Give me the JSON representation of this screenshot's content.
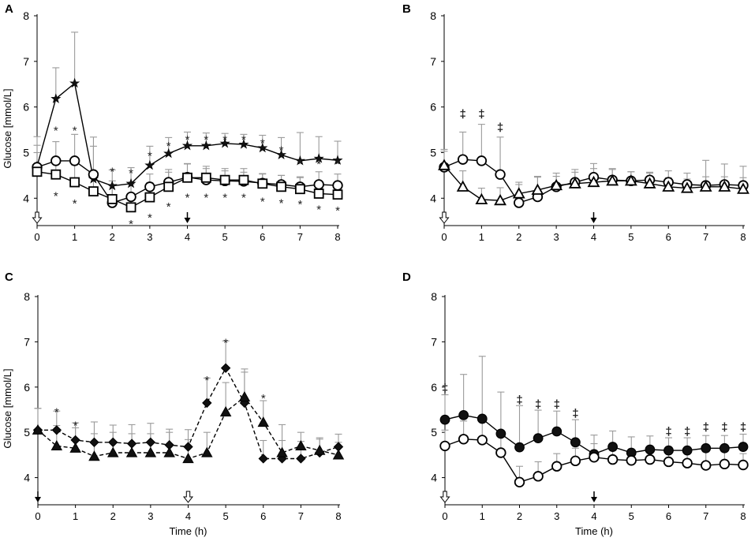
{
  "figure": {
    "x_label": "Time (h)",
    "y_label": "Glucose [mmol/L]"
  },
  "chart_data": [
    {
      "panel": "A",
      "type": "line",
      "title": "A",
      "ylabel": "Glucose [mmol/L]",
      "xlabel": "",
      "xlim": [
        0,
        8
      ],
      "ylim": [
        3.4,
        8
      ],
      "xticks": [
        0,
        1,
        2,
        3,
        4,
        5,
        6,
        7,
        8
      ],
      "yticks": [
        4,
        5,
        6,
        7,
        8
      ],
      "x": [
        0,
        0.5,
        1,
        1.5,
        2,
        2.5,
        3,
        3.5,
        4,
        4.5,
        5,
        5.5,
        6,
        6.5,
        7,
        7.5,
        8
      ],
      "series": [
        {
          "name": "star",
          "marker": "star",
          "dash": false,
          "values": [
            4.7,
            6.18,
            6.52,
            4.42,
            4.27,
            4.32,
            4.72,
            4.98,
            5.15,
            5.15,
            5.2,
            5.18,
            5.1,
            4.95,
            4.82,
            4.87,
            4.83
          ],
          "errors": [
            0.65,
            0.68,
            1.12,
            0.92,
            0.35,
            0.35,
            0.42,
            0.35,
            0.3,
            0.28,
            0.22,
            0.22,
            0.28,
            0.38,
            0.62,
            0.48,
            0.42
          ]
        },
        {
          "name": "circle",
          "marker": "circle",
          "dash": false,
          "values": [
            4.68,
            4.82,
            4.82,
            4.52,
            3.9,
            4.03,
            4.25,
            4.35,
            4.46,
            4.4,
            4.38,
            4.37,
            4.33,
            4.3,
            4.25,
            4.3,
            4.28
          ],
          "errors": [
            0.48,
            0.42,
            0.58,
            0.62,
            0.38,
            0.28,
            0.28,
            0.28,
            0.3,
            0.25,
            0.22,
            0.2,
            0.2,
            0.2,
            0.22,
            0.28,
            0.25
          ]
        },
        {
          "name": "square",
          "marker": "square",
          "dash": false,
          "values": [
            4.58,
            4.52,
            4.35,
            4.15,
            3.98,
            3.8,
            4.02,
            4.25,
            4.45,
            4.45,
            4.4,
            4.4,
            4.32,
            4.25,
            4.2,
            4.1,
            4.08
          ],
          "errors": [
            0.42,
            0.38,
            0.38,
            0.42,
            0.4,
            0.3,
            0.32,
            0.32,
            0.3,
            0.25,
            0.25,
            0.25,
            0.22,
            0.25,
            0.25,
            0.22,
            0.25
          ]
        }
      ],
      "annotations": [
        {
          "x": 0.5,
          "y": 5.55,
          "text": "*"
        },
        {
          "x": 1,
          "y": 5.55,
          "text": "*"
        },
        {
          "x": 2,
          "y": 4.65,
          "text": "*"
        },
        {
          "x": 2.5,
          "y": 4.62,
          "text": "*"
        },
        {
          "x": 3,
          "y": 5.0,
          "text": "*"
        },
        {
          "x": 3.5,
          "y": 5.22,
          "text": "*"
        },
        {
          "x": 4,
          "y": 5.35,
          "text": "*"
        },
        {
          "x": 4.5,
          "y": 5.35,
          "text": "*"
        },
        {
          "x": 5,
          "y": 5.35,
          "text": "*"
        },
        {
          "x": 5.5,
          "y": 5.35,
          "text": "*"
        },
        {
          "x": 6,
          "y": 5.28,
          "text": "*"
        },
        {
          "x": 6.5,
          "y": 5.12,
          "text": "*"
        },
        {
          "x": 7,
          "y": 4.82,
          "text": "*"
        },
        {
          "x": 7.5,
          "y": 4.82,
          "text": "*"
        },
        {
          "x": 8,
          "y": 4.82,
          "text": "*"
        },
        {
          "x": 0.5,
          "y": 4.12,
          "text": "*"
        },
        {
          "x": 1,
          "y": 3.95,
          "text": "*"
        },
        {
          "x": 2.5,
          "y": 3.5,
          "text": "*"
        },
        {
          "x": 3,
          "y": 3.64,
          "text": "*"
        },
        {
          "x": 3.5,
          "y": 3.88,
          "text": "*"
        },
        {
          "x": 4,
          "y": 4.08,
          "text": "*"
        },
        {
          "x": 4.5,
          "y": 4.08,
          "text": "*"
        },
        {
          "x": 5,
          "y": 4.08,
          "text": "*"
        },
        {
          "x": 5.5,
          "y": 4.08,
          "text": "*"
        },
        {
          "x": 6,
          "y": 4.0,
          "text": "*"
        },
        {
          "x": 6.5,
          "y": 3.96,
          "text": "*"
        },
        {
          "x": 7,
          "y": 3.94,
          "text": "*"
        },
        {
          "x": 7.5,
          "y": 3.82,
          "text": "*"
        },
        {
          "x": 8,
          "y": 3.8,
          "text": "*"
        }
      ],
      "arrows": [
        {
          "x": 0,
          "kind": "open"
        },
        {
          "x": 4,
          "kind": "filled"
        }
      ]
    },
    {
      "panel": "B",
      "type": "line",
      "title": "B",
      "ylabel": "",
      "xlabel": "",
      "xlim": [
        0,
        8
      ],
      "ylim": [
        3.4,
        8
      ],
      "xticks": [
        0,
        1,
        2,
        3,
        4,
        5,
        6,
        7,
        8
      ],
      "yticks": [
        4,
        5,
        6,
        7,
        8
      ],
      "x": [
        0,
        0.5,
        1,
        1.5,
        2,
        2.5,
        3,
        3.5,
        4,
        4.5,
        5,
        5.5,
        6,
        6.5,
        7,
        7.5,
        8
      ],
      "series": [
        {
          "name": "circle",
          "marker": "circle",
          "dash": false,
          "values": [
            4.68,
            4.85,
            4.82,
            4.52,
            3.9,
            4.03,
            4.25,
            4.35,
            4.46,
            4.4,
            4.38,
            4.4,
            4.35,
            4.3,
            4.28,
            4.3,
            4.28
          ],
          "errors": [
            0.35,
            0.6,
            0.8,
            0.82,
            0.4,
            0.45,
            0.3,
            0.28,
            0.3,
            0.25,
            0.2,
            0.15,
            0.25,
            0.25,
            0.55,
            0.45,
            0.42
          ]
        },
        {
          "name": "triangle",
          "marker": "triangle",
          "dash": false,
          "values": [
            4.72,
            4.25,
            3.97,
            3.95,
            4.1,
            4.18,
            4.28,
            4.32,
            4.35,
            4.38,
            4.38,
            4.32,
            4.25,
            4.22,
            4.25,
            4.25,
            4.2
          ],
          "errors": [
            0.35,
            0.35,
            0.25,
            0.28,
            0.25,
            0.28,
            0.2,
            0.25,
            0.3,
            0.25,
            0.2,
            0.25,
            0.2,
            0.2,
            0.22,
            0.22,
            0.25
          ]
        }
      ],
      "annotations": [
        {
          "x": 0.5,
          "y": 5.85,
          "text": "‡"
        },
        {
          "x": 1,
          "y": 5.85,
          "text": "‡"
        },
        {
          "x": 1.5,
          "y": 5.55,
          "text": "‡"
        }
      ],
      "arrows": [
        {
          "x": 0,
          "kind": "open"
        },
        {
          "x": 4,
          "kind": "filled"
        }
      ]
    },
    {
      "panel": "C",
      "type": "line",
      "title": "C",
      "ylabel": "Glucose [mmol/L]",
      "xlabel": "Time (h)",
      "xlim": [
        0,
        8
      ],
      "ylim": [
        3.4,
        8
      ],
      "xticks": [
        0,
        1,
        2,
        3,
        4,
        5,
        6,
        7,
        8
      ],
      "yticks": [
        4,
        5,
        6,
        7,
        8
      ],
      "x": [
        0,
        0.5,
        1,
        1.5,
        2,
        2.5,
        3,
        3.5,
        4,
        4.5,
        5,
        5.5,
        6,
        6.5,
        7,
        7.5,
        8
      ],
      "series": [
        {
          "name": "diamond",
          "marker": "diamond",
          "dash": true,
          "values": [
            5.05,
            5.05,
            4.83,
            4.78,
            4.78,
            4.75,
            4.78,
            4.72,
            4.68,
            5.65,
            6.42,
            5.65,
            4.42,
            4.42,
            4.42,
            4.55,
            4.68
          ],
          "errors": [
            0.48,
            0.42,
            0.38,
            0.45,
            0.38,
            0.42,
            0.42,
            0.35,
            0.38,
            0.55,
            0.6,
            0.75,
            0.4,
            0.4,
            0.38,
            0.3,
            0.28
          ]
        },
        {
          "name": "triangle",
          "marker": "triangle",
          "dash": true,
          "values": [
            5.05,
            4.7,
            4.65,
            4.47,
            4.55,
            4.55,
            4.55,
            4.55,
            4.42,
            4.55,
            5.45,
            5.78,
            5.22,
            4.55,
            4.7,
            4.6,
            4.5
          ],
          "errors": [
            0.48,
            0.45,
            0.45,
            0.5,
            0.45,
            0.42,
            0.42,
            0.45,
            0.42,
            0.45,
            0.65,
            0.55,
            0.48,
            0.62,
            0.3,
            0.28,
            0.28
          ]
        }
      ],
      "annotations": [
        {
          "x": 0.5,
          "y": 5.52,
          "text": "*"
        },
        {
          "x": 1,
          "y": 5.22,
          "text": "*"
        },
        {
          "x": 4.5,
          "y": 6.22,
          "text": "*"
        },
        {
          "x": 5,
          "y": 7.05,
          "text": "*"
        },
        {
          "x": 6,
          "y": 5.82,
          "text": "*"
        }
      ],
      "arrows": [
        {
          "x": 0,
          "kind": "filled"
        },
        {
          "x": 4,
          "kind": "open"
        }
      ]
    },
    {
      "panel": "D",
      "type": "line",
      "title": "D",
      "ylabel": "",
      "xlabel": "Time (h)",
      "xlim": [
        0,
        8
      ],
      "ylim": [
        3.4,
        8
      ],
      "xticks": [
        0,
        1,
        2,
        3,
        4,
        5,
        6,
        7,
        8
      ],
      "yticks": [
        4,
        5,
        6,
        7,
        8
      ],
      "x": [
        0,
        0.5,
        1,
        1.5,
        2,
        2.5,
        3,
        3.5,
        4,
        4.5,
        5,
        5.5,
        6,
        6.5,
        7,
        7.5,
        8
      ],
      "series": [
        {
          "name": "filled-circle",
          "marker": "filled-circle",
          "dash": false,
          "values": [
            5.28,
            5.38,
            5.3,
            4.97,
            4.67,
            4.87,
            5.02,
            4.78,
            4.52,
            4.68,
            4.55,
            4.62,
            4.6,
            4.6,
            4.65,
            4.65,
            4.68
          ],
          "errors": [
            0.55,
            0.9,
            1.38,
            0.92,
            0.92,
            0.62,
            0.45,
            0.5,
            0.42,
            0.35,
            0.35,
            0.3,
            0.28,
            0.28,
            0.28,
            0.28,
            0.28
          ]
        },
        {
          "name": "open-circle",
          "marker": "circle",
          "dash": false,
          "values": [
            4.7,
            4.85,
            4.83,
            4.55,
            3.9,
            4.03,
            4.25,
            4.37,
            4.45,
            4.4,
            4.38,
            4.4,
            4.35,
            4.32,
            4.27,
            4.3,
            4.28
          ],
          "errors": [
            0.35,
            0.4,
            0.42,
            0.45,
            0.35,
            0.32,
            0.28,
            0.28,
            0.3,
            0.25,
            0.22,
            0.22,
            0.22,
            0.25,
            0.3,
            0.28,
            0.25
          ]
        }
      ],
      "annotations": [
        {
          "x": 0,
          "y": 5.98,
          "text": "‡"
        },
        {
          "x": 2,
          "y": 5.72,
          "text": "‡"
        },
        {
          "x": 2.5,
          "y": 5.62,
          "text": "‡"
        },
        {
          "x": 3,
          "y": 5.62,
          "text": "‡"
        },
        {
          "x": 3.5,
          "y": 5.42,
          "text": "‡"
        },
        {
          "x": 6,
          "y": 5.02,
          "text": "‡"
        },
        {
          "x": 6.5,
          "y": 5.02,
          "text": "‡"
        },
        {
          "x": 7,
          "y": 5.12,
          "text": "‡"
        },
        {
          "x": 7.5,
          "y": 5.12,
          "text": "‡"
        },
        {
          "x": 8,
          "y": 5.12,
          "text": "‡"
        }
      ],
      "arrows": [
        {
          "x": 0,
          "kind": "open"
        },
        {
          "x": 4,
          "kind": "filled"
        }
      ]
    }
  ]
}
